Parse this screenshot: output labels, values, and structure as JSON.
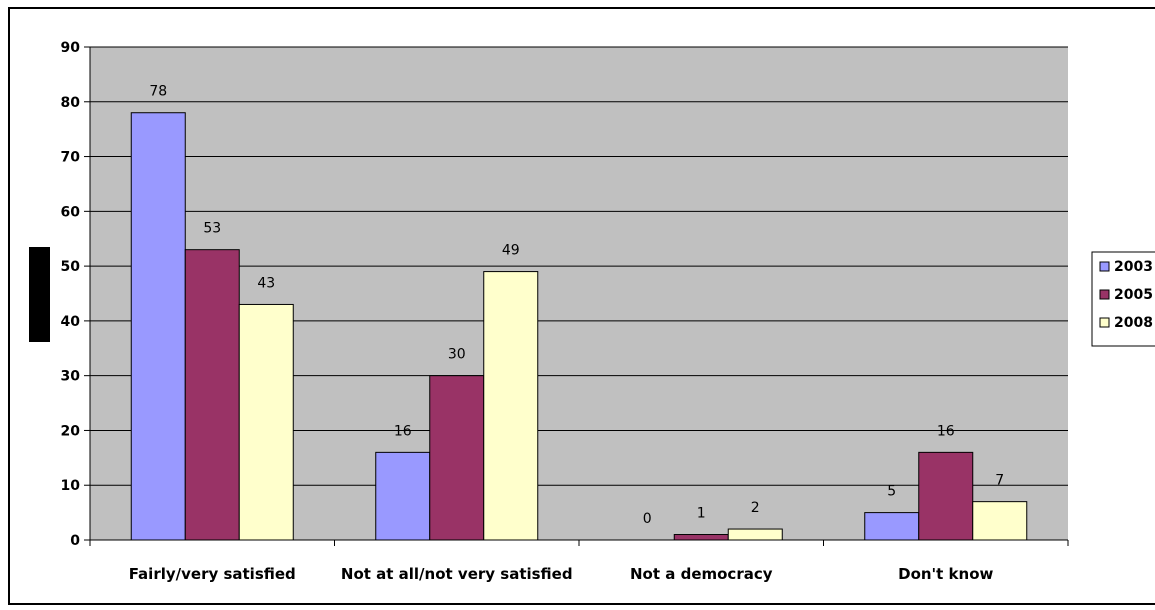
{
  "chart_data": {
    "type": "bar",
    "title": "",
    "xlabel": "",
    "ylabel": "",
    "ylim": [
      0,
      90
    ],
    "yticks": [
      0,
      10,
      20,
      30,
      40,
      50,
      60,
      70,
      80,
      90
    ],
    "grid": true,
    "legend_position": "right",
    "categories": [
      "Fairly/very satisfied",
      "Not at all/not very satisfied",
      "Not a democracy",
      "Don't know"
    ],
    "series": [
      {
        "name": "2003",
        "color": "#9999ff",
        "values": [
          78,
          16,
          0,
          5
        ]
      },
      {
        "name": "2005",
        "color": "#993366",
        "values": [
          53,
          30,
          1,
          16
        ]
      },
      {
        "name": "2008",
        "color": "#ffffcc",
        "values": [
          43,
          49,
          2,
          7
        ]
      }
    ],
    "plot_background": "#c0c0c0"
  }
}
